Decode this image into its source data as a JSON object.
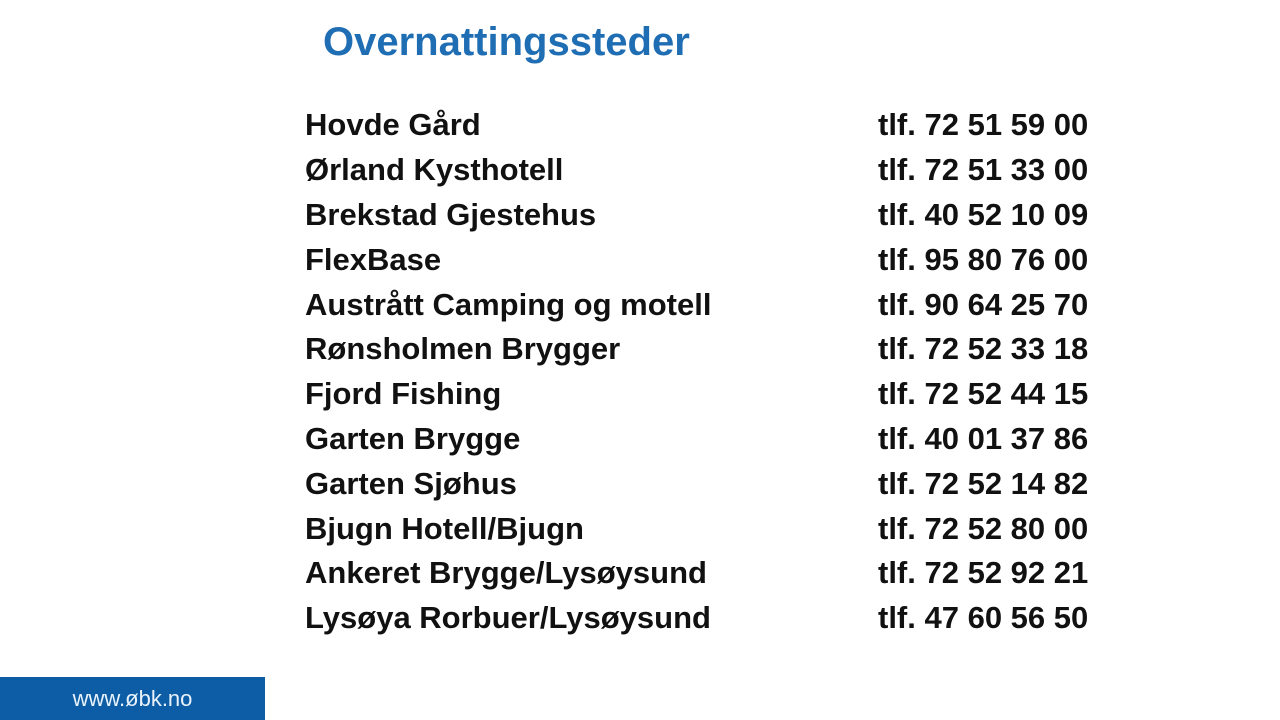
{
  "slide": {
    "title": "Overnattingssteder",
    "accent_color": "#1F6EB4",
    "text_color": "#111111",
    "footer": {
      "url": "www.øbk.no",
      "bg_color": "#0C5DA5"
    },
    "rows": [
      {
        "name": "Hovde Gård",
        "phone": "tlf. 72 51 59 00"
      },
      {
        "name": "Ørland Kysthotell",
        "phone": "tlf. 72 51 33 00"
      },
      {
        "name": "Brekstad Gjestehus",
        "phone": "tlf. 40 52 10 09"
      },
      {
        "name": "FlexBase",
        "phone": "tlf. 95 80 76 00"
      },
      {
        "name": "Austrått Camping og motell",
        "phone": "tlf. 90 64 25 70"
      },
      {
        "name": "Rønsholmen Brygger",
        "phone": "tlf. 72 52 33 18"
      },
      {
        "name": "Fjord Fishing",
        "phone": "tlf. 72 52 44 15"
      },
      {
        "name": "Garten Brygge",
        "phone": "tlf. 40 01 37 86"
      },
      {
        "name": "Garten Sjøhus",
        "phone": "tlf. 72 52 14 82"
      },
      {
        "name": "Bjugn Hotell/Bjugn",
        "phone": "tlf. 72 52 80 00"
      },
      {
        "name": "Ankeret Brygge/Lysøysund",
        "phone": "tlf. 72 52 92 21"
      },
      {
        "name": "Lysøya Rorbuer/Lysøysund",
        "phone": "tlf. 47 60 56 50"
      }
    ]
  }
}
